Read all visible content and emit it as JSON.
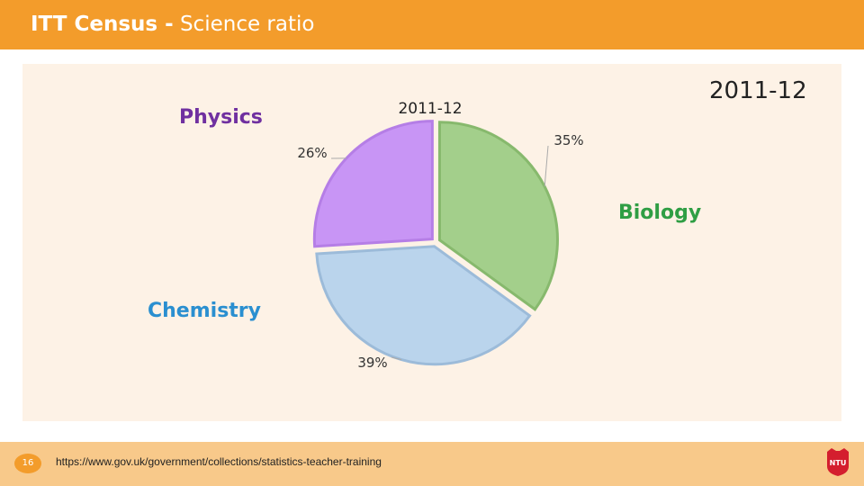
{
  "header": {
    "title_bold": "ITT Census -",
    "title_rest": " Science ratio"
  },
  "slide": {
    "year_label": "2011-12",
    "page_number": "16",
    "source_url": "https://www.gov.uk/government/collections/statistics-teacher-training",
    "logo_text": "NTU"
  },
  "labels": {
    "physics": "Physics",
    "biology": "Biology",
    "chemistry": "Chemistry"
  },
  "colors": {
    "header": "#f39c2b",
    "physics": "#c895f5",
    "biology": "#a3cf8b",
    "chemistry": "#bad4ec"
  },
  "chart_data": {
    "type": "pie",
    "title": "2011-12",
    "categories": [
      "Physics",
      "Biology",
      "Chemistry"
    ],
    "values": [
      26,
      35,
      39
    ],
    "value_labels": [
      "26%",
      "35%",
      "39%"
    ]
  }
}
